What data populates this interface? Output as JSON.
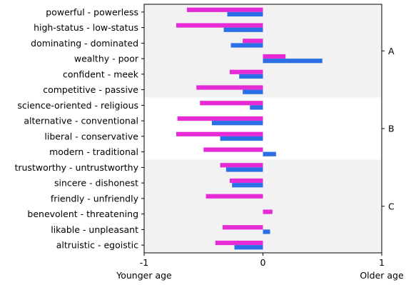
{
  "chart_data": {
    "type": "bar",
    "orientation": "horizontal",
    "categories": [
      "powerful - powerless",
      "high-status - low-status",
      "dominating - dominated",
      "wealthy - poor",
      "confident - meek",
      "competitive - passive",
      "science-oriented - religious",
      "alternative - conventional",
      "liberal - conservative",
      "modern - traditional",
      "trustworthy - untrustworthy",
      "sincere - dishonest",
      "friendly - unfriendly",
      "benevolent - threatening",
      "likable - unpleasant",
      "altruistic - egoistic"
    ],
    "series": [
      {
        "color": "#e62ad6",
        "values": [
          -0.64,
          -0.73,
          -0.17,
          0.19,
          -0.28,
          -0.56,
          -0.53,
          -0.72,
          -0.73,
          -0.5,
          -0.36,
          -0.28,
          -0.48,
          0.08,
          -0.34,
          -0.4
        ]
      },
      {
        "color": "#2a6fe6",
        "values": [
          -0.3,
          -0.33,
          -0.27,
          0.5,
          -0.2,
          -0.17,
          -0.11,
          -0.43,
          -0.36,
          0.11,
          -0.31,
          -0.26,
          0.0,
          0.0,
          0.06,
          -0.24
        ]
      }
    ],
    "groups": [
      {
        "label": "A",
        "start": 0,
        "end": 5,
        "shaded": true
      },
      {
        "label": "B",
        "start": 6,
        "end": 9,
        "shaded": false
      },
      {
        "label": "C",
        "start": 10,
        "end": 15,
        "shaded": true
      }
    ],
    "xlim": [
      -1,
      1
    ],
    "xticks": [
      -1,
      0,
      1
    ],
    "xtick_labels": [
      "-1",
      "0",
      "1"
    ],
    "xlabel_left": "Younger age",
    "xlabel_right": "Older age",
    "shade_color": "#f2f2f2"
  }
}
